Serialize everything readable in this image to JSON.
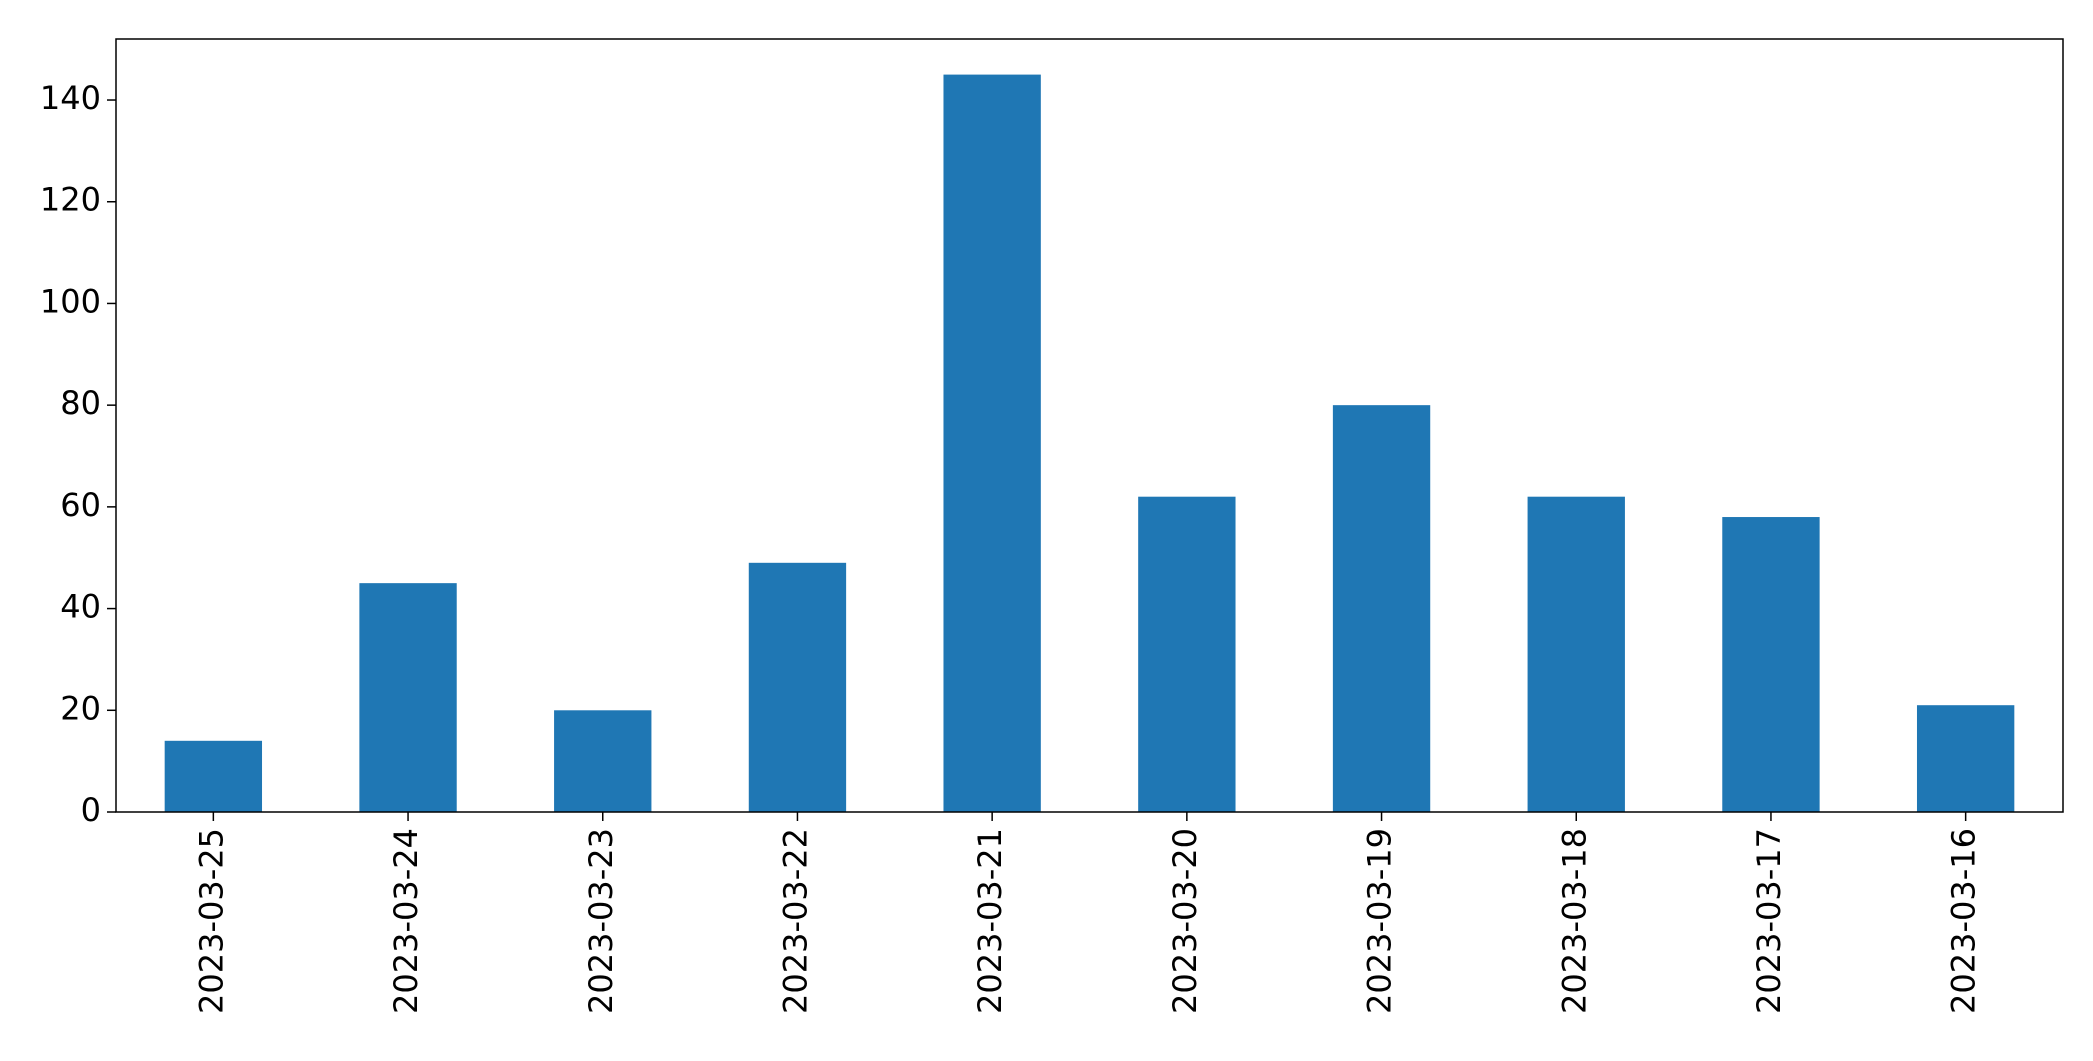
{
  "chart_data": {
    "type": "bar",
    "title": "",
    "xlabel": "",
    "ylabel": "",
    "categories": [
      "2023-03-25",
      "2023-03-24",
      "2023-03-23",
      "2023-03-22",
      "2023-03-21",
      "2023-03-20",
      "2023-03-19",
      "2023-03-18",
      "2023-03-17",
      "2023-03-16"
    ],
    "values": [
      14,
      45,
      20,
      49,
      145,
      62,
      80,
      62,
      58,
      21
    ],
    "ylim": [
      0,
      152
    ],
    "yticks": [
      0,
      20,
      40,
      60,
      80,
      100,
      120,
      140
    ],
    "grid": false,
    "legend": "none",
    "bar_color": "#1f77b4"
  }
}
